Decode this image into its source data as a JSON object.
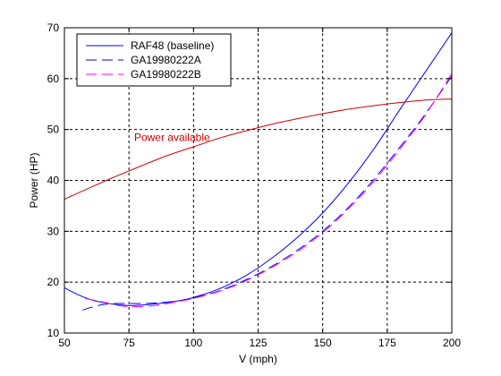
{
  "chart_data": {
    "type": "line",
    "title": "",
    "xlabel": "V (mph)",
    "ylabel": "Power (HP)",
    "xlim": [
      50,
      200
    ],
    "ylim": [
      10,
      70
    ],
    "xticks": [
      50,
      75,
      100,
      125,
      150,
      175,
      200
    ],
    "yticks": [
      10,
      20,
      30,
      40,
      50,
      60,
      70
    ],
    "grid": true,
    "legend_position": "top-left",
    "series": [
      {
        "name": "RAF48 (baseline)",
        "color": "#0000ff",
        "style": "solid",
        "x": [
          50,
          55,
          60,
          65,
          70,
          75,
          80,
          85,
          90,
          95,
          100,
          110,
          120,
          130,
          140,
          150,
          160,
          170,
          180,
          190,
          200
        ],
        "y": [
          18.9,
          17.6,
          16.6,
          16.0,
          15.6,
          15.4,
          15.5,
          15.7,
          16.0,
          16.4,
          17.0,
          18.7,
          21.2,
          24.6,
          28.7,
          33.6,
          39.5,
          46.3,
          54.0,
          61.5,
          69.0
        ]
      },
      {
        "name": "GA19980222A",
        "color": "#0000ff",
        "style": "dashed",
        "x": [
          57,
          60,
          65,
          70,
          75,
          80,
          85,
          90,
          95,
          100,
          110,
          120,
          130,
          140,
          150,
          160,
          170,
          180,
          190,
          200
        ],
        "y": [
          14.5,
          15.0,
          15.6,
          15.8,
          15.8,
          15.8,
          15.9,
          16.1,
          16.4,
          16.9,
          18.3,
          20.4,
          23.0,
          26.2,
          30.0,
          34.7,
          40.3,
          46.6,
          53.2,
          60.5
        ]
      },
      {
        "name": "GA19980222B",
        "color": "#ff00ff",
        "style": "dashed",
        "x": [
          58,
          60,
          65,
          70,
          75,
          80,
          85,
          90,
          95,
          100,
          110,
          120,
          130,
          140,
          150,
          160,
          170,
          180,
          190,
          200
        ],
        "y": [
          16.8,
          16.6,
          16.1,
          15.5,
          15.2,
          15.2,
          15.4,
          15.8,
          16.3,
          16.8,
          18.2,
          20.2,
          22.8,
          25.9,
          29.7,
          34.4,
          39.9,
          46.2,
          53.0,
          61.0
        ]
      },
      {
        "color": "#cc0000",
        "style": "solid",
        "x": [
          50,
          60,
          70,
          80,
          90,
          100,
          110,
          120,
          130,
          140,
          150,
          160,
          170,
          180,
          190,
          200
        ],
        "y": [
          36.3,
          38.6,
          40.8,
          42.9,
          44.9,
          46.6,
          48.3,
          49.7,
          51.0,
          52.1,
          53.1,
          54.0,
          54.7,
          55.3,
          55.8,
          56.0
        ]
      }
    ],
    "annotations": [
      {
        "text": "Power available",
        "x": 77,
        "y": 47.7,
        "color": "#cc0000"
      }
    ]
  }
}
